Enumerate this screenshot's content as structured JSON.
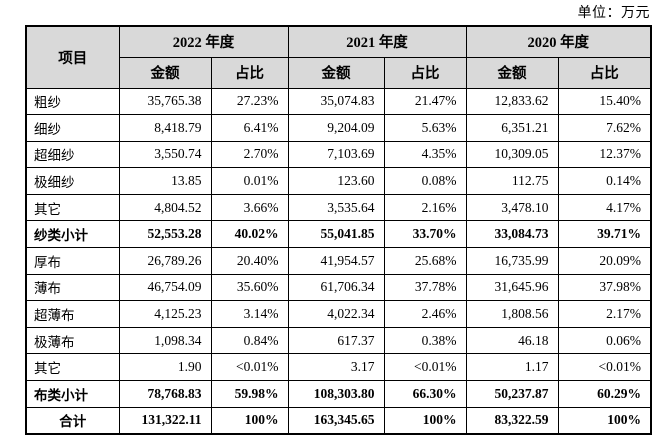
{
  "unit_label": "单位：万元",
  "table": {
    "col_item": "项目",
    "year_groups": [
      {
        "label": "2022 年度"
      },
      {
        "label": "2021 年度"
      },
      {
        "label": "2020 年度"
      }
    ],
    "sub_headers": {
      "amount": "金额",
      "ratio": "占比"
    },
    "header_bg_color": "#d9d9d9",
    "border_color": "#000000",
    "rows": [
      {
        "label": "粗纱",
        "bold": false,
        "align": "left",
        "values": [
          "35,765.38",
          "27.23%",
          "35,074.83",
          "21.47%",
          "12,833.62",
          "15.40%"
        ]
      },
      {
        "label": "细纱",
        "bold": false,
        "align": "left",
        "values": [
          "8,418.79",
          "6.41%",
          "9,204.09",
          "5.63%",
          "6,351.21",
          "7.62%"
        ]
      },
      {
        "label": "超细纱",
        "bold": false,
        "align": "left",
        "values": [
          "3,550.74",
          "2.70%",
          "7,103.69",
          "4.35%",
          "10,309.05",
          "12.37%"
        ]
      },
      {
        "label": "极细纱",
        "bold": false,
        "align": "left",
        "values": [
          "13.85",
          "0.01%",
          "123.60",
          "0.08%",
          "112.75",
          "0.14%"
        ]
      },
      {
        "label": "其它",
        "bold": false,
        "align": "left",
        "values": [
          "4,804.52",
          "3.66%",
          "3,535.64",
          "2.16%",
          "3,478.10",
          "4.17%"
        ]
      },
      {
        "label": "纱类小计",
        "bold": true,
        "align": "left",
        "values": [
          "52,553.28",
          "40.02%",
          "55,041.85",
          "33.70%",
          "33,084.73",
          "39.71%"
        ]
      },
      {
        "label": "厚布",
        "bold": false,
        "align": "left",
        "values": [
          "26,789.26",
          "20.40%",
          "41,954.57",
          "25.68%",
          "16,735.99",
          "20.09%"
        ]
      },
      {
        "label": "薄布",
        "bold": false,
        "align": "left",
        "values": [
          "46,754.09",
          "35.60%",
          "61,706.34",
          "37.78%",
          "31,645.96",
          "37.98%"
        ]
      },
      {
        "label": "超薄布",
        "bold": false,
        "align": "left",
        "values": [
          "4,125.23",
          "3.14%",
          "4,022.34",
          "2.46%",
          "1,808.56",
          "2.17%"
        ]
      },
      {
        "label": "极薄布",
        "bold": false,
        "align": "left",
        "values": [
          "1,098.34",
          "0.84%",
          "617.37",
          "0.38%",
          "46.18",
          "0.06%"
        ]
      },
      {
        "label": "其它",
        "bold": false,
        "align": "left",
        "values": [
          "1.90",
          "<0.01%",
          "3.17",
          "<0.01%",
          "1.17",
          "<0.01%"
        ]
      },
      {
        "label": "布类小计",
        "bold": true,
        "align": "left",
        "values": [
          "78,768.83",
          "59.98%",
          "108,303.80",
          "66.30%",
          "50,237.87",
          "60.29%"
        ]
      },
      {
        "label": "合计",
        "bold": true,
        "align": "center",
        "values": [
          "131,322.11",
          "100%",
          "163,345.65",
          "100%",
          "83,322.59",
          "100%"
        ]
      }
    ]
  }
}
